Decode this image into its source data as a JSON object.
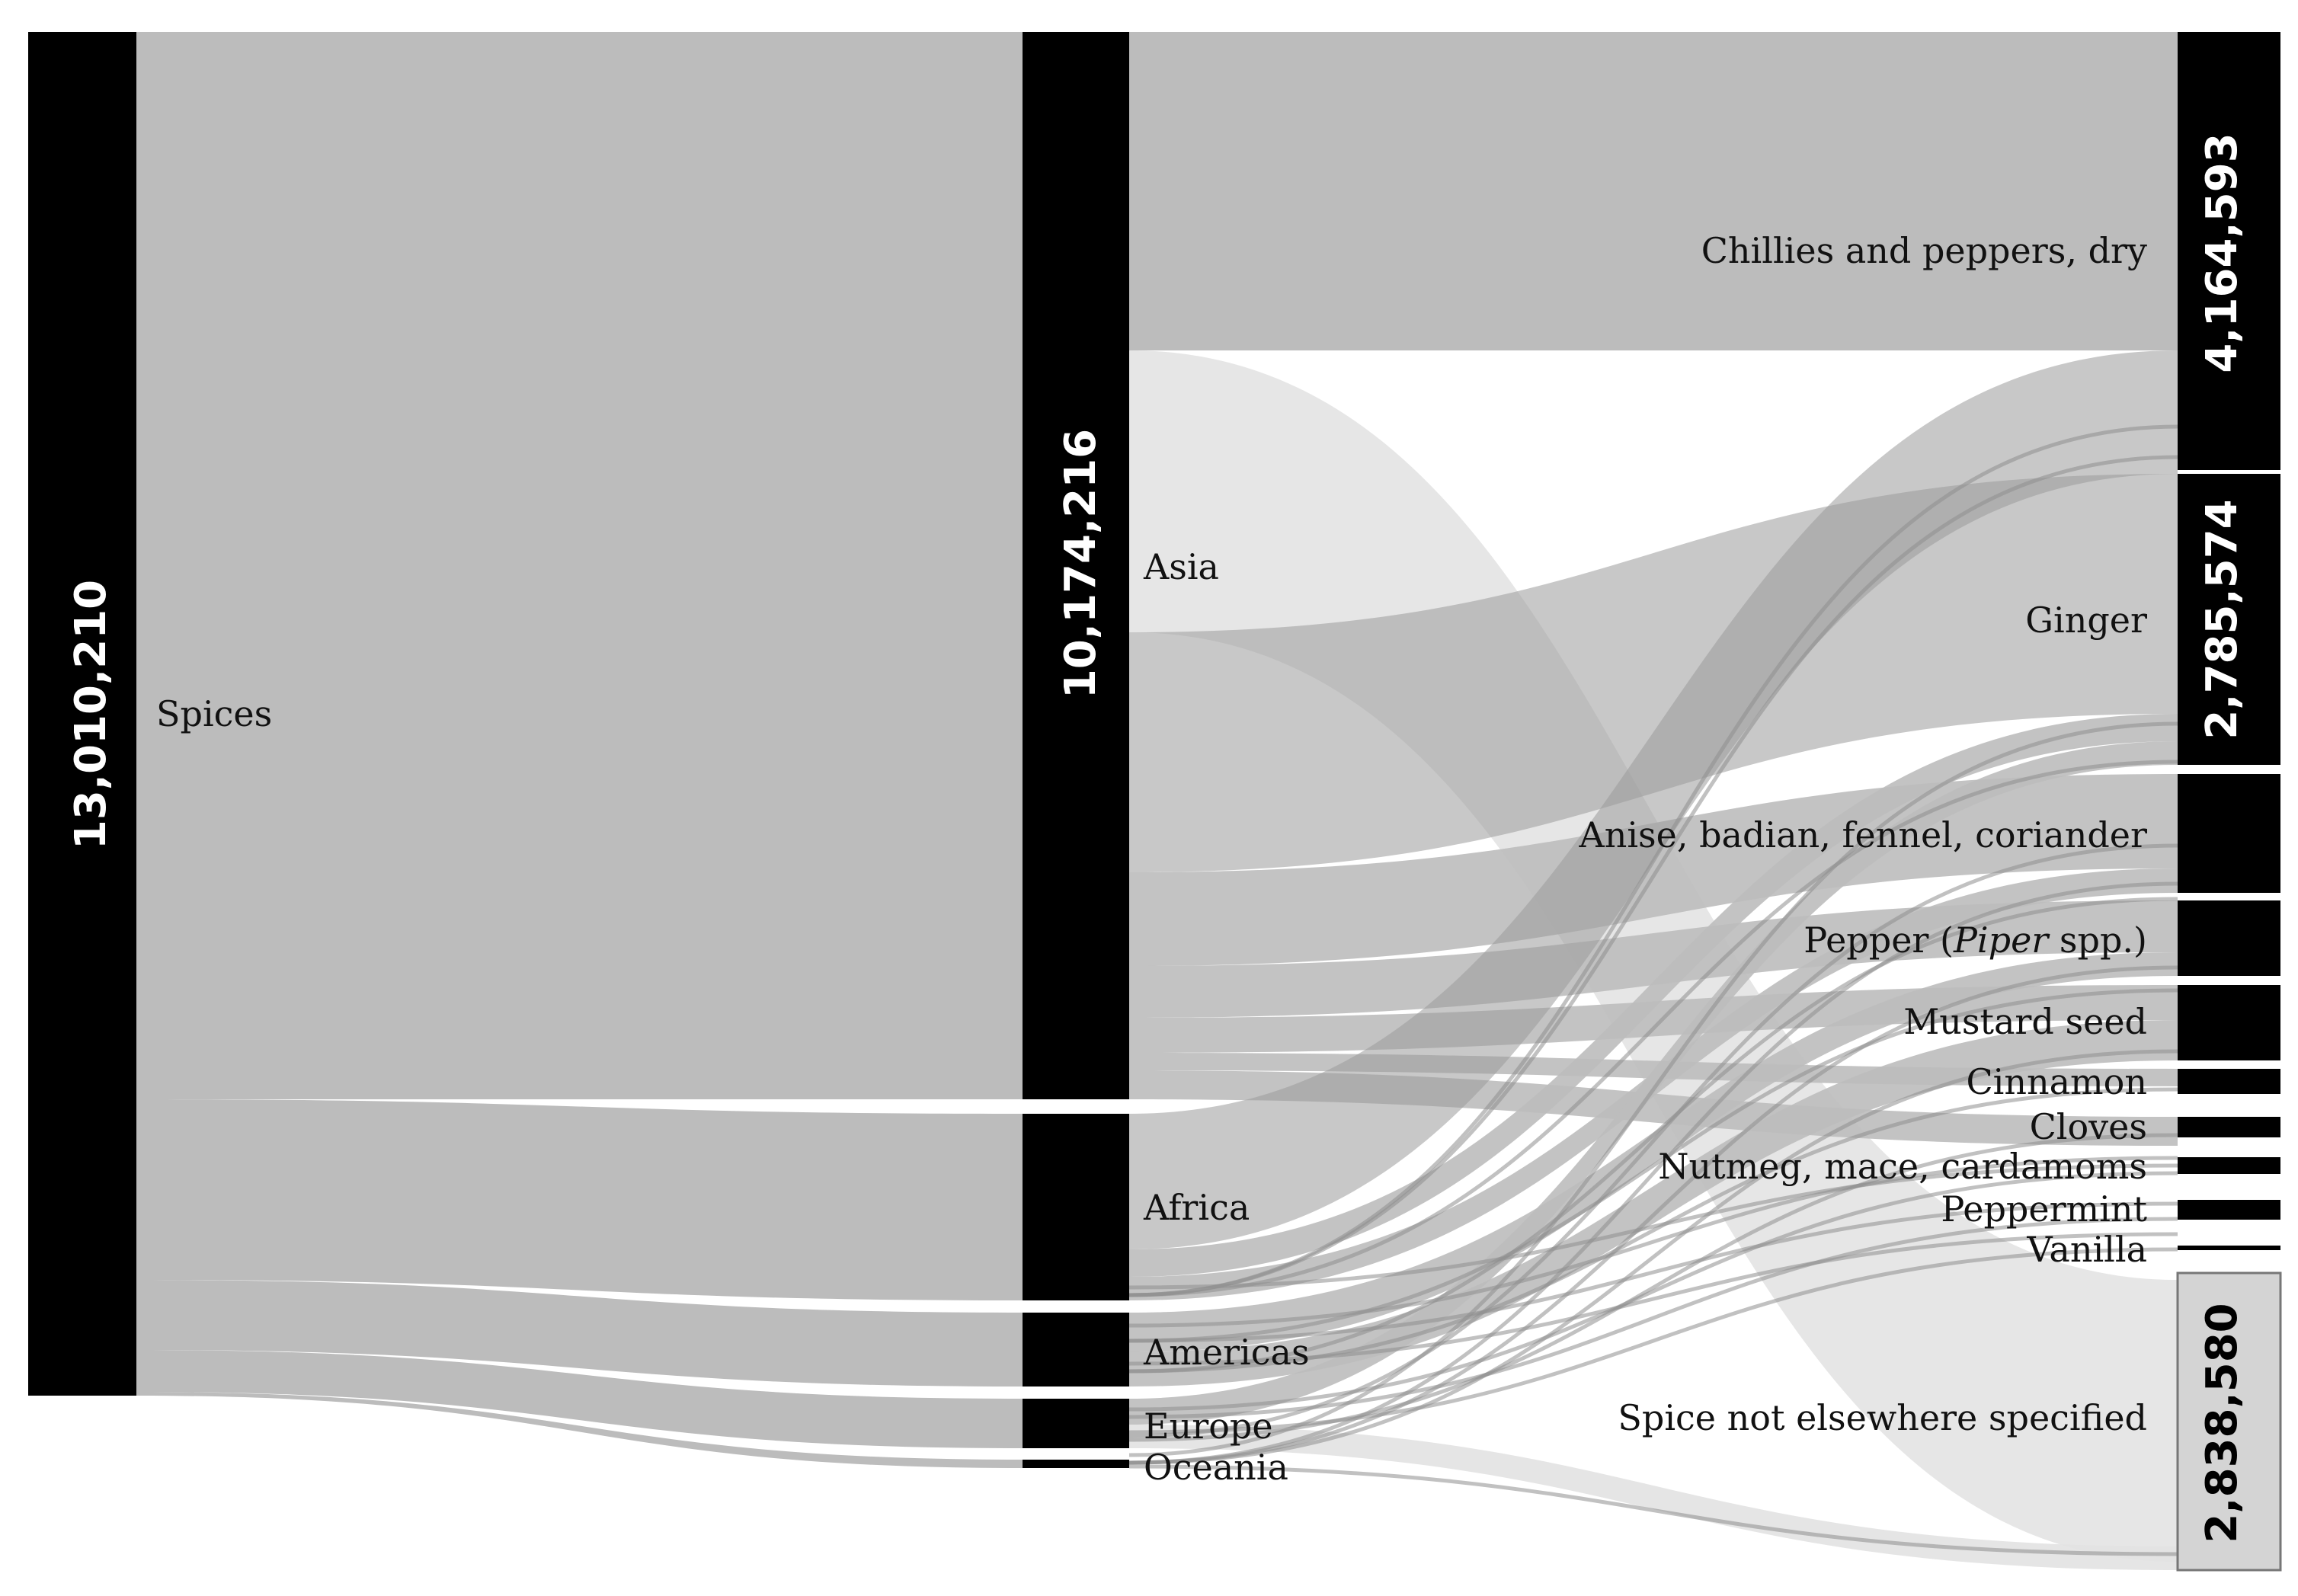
{
  "chart_data": {
    "type": "sankey",
    "total": {
      "label": "13,010,210"
    },
    "category": {
      "name": "Spices",
      "value_label": "10,174,216"
    },
    "regions": [
      {
        "name": "Asia"
      },
      {
        "name": "Africa"
      },
      {
        "name": "Americas"
      },
      {
        "name": "Europe"
      },
      {
        "name": "Oceania"
      }
    ],
    "products": [
      {
        "name": "Chillies and peppers, dry",
        "value_label": "4,164,593"
      },
      {
        "name": "Ginger",
        "value_label": "2,785,574"
      },
      {
        "name": "Anise, badian, fennel, coriander",
        "value_label": ""
      },
      {
        "name": "Pepper (Piper spp.)",
        "name_parts": [
          "Pepper (",
          "Piper",
          " spp.)"
        ],
        "value_label": ""
      },
      {
        "name": "Mustard seed",
        "value_label": ""
      },
      {
        "name": "Cinnamon",
        "value_label": ""
      },
      {
        "name": "Cloves",
        "value_label": ""
      },
      {
        "name": "Nutmeg, mace, cardamoms",
        "value_label": ""
      },
      {
        "name": "Peppermint",
        "value_label": ""
      },
      {
        "name": "Vanilla",
        "value_label": ""
      },
      {
        "name": "Spice not elsewhere specified",
        "value_label": "2,838,580"
      }
    ],
    "colors": {
      "node": "#000000",
      "flow": "#bcbcbc",
      "flow_light": "#e2e2e2",
      "flow_dark": "#9a9a9a",
      "spice_ne_node": "#d4d4d4"
    }
  }
}
